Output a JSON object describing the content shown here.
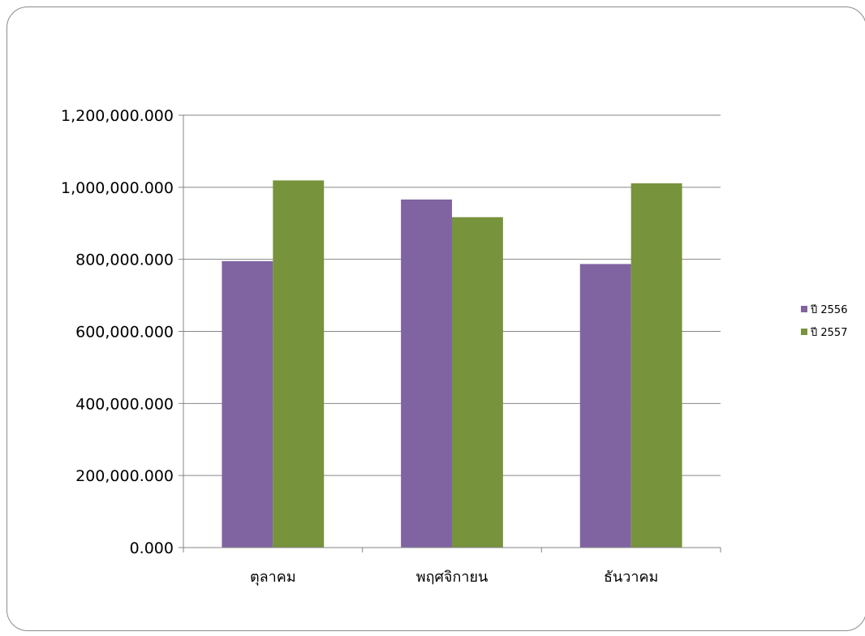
{
  "chart_data": {
    "type": "bar",
    "categories": [
      "ตุลาคม",
      "พฤศจิกายน",
      "ธันวาคม"
    ],
    "series": [
      {
        "name": "ปี 2556",
        "color": "#8064a2",
        "values": [
          795000,
          966000,
          787000
        ]
      },
      {
        "name": "ปี 2557",
        "color": "#77933c",
        "values": [
          1019000,
          917000,
          1011000
        ]
      }
    ],
    "y_ticks": [
      "0.000",
      "200,000.000",
      "400,000.000",
      "600,000.000",
      "800,000.000",
      "1,000,000.000",
      "1,200,000.000"
    ],
    "ylim": [
      0,
      1200000
    ],
    "grid": true,
    "legend": "right",
    "title": "",
    "xlabel": "",
    "ylabel": ""
  }
}
